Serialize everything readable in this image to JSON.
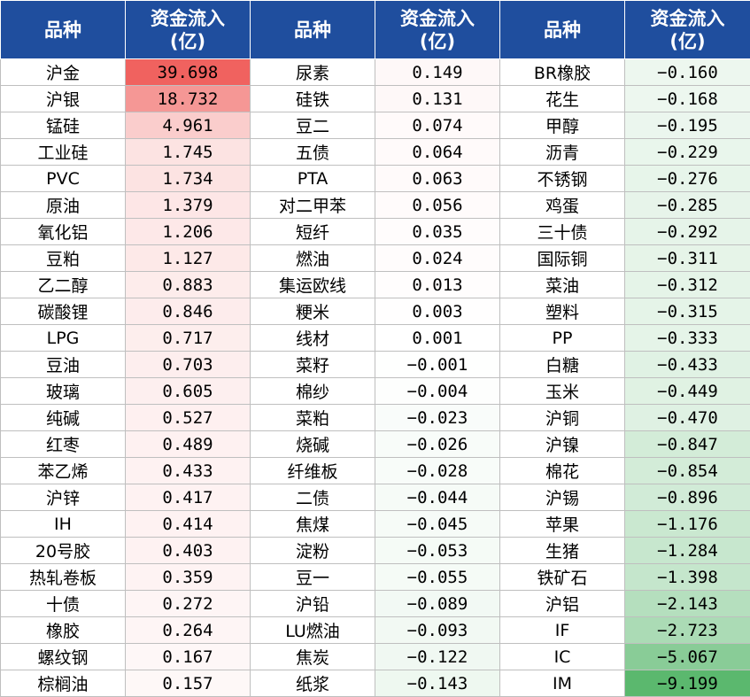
{
  "headers": {
    "variety": "品种",
    "flow_line1": "资金流入",
    "flow_line2": "(亿)"
  },
  "colors": {
    "header_bg": "#1f4e9e",
    "header_text": "#ffffff",
    "positive_max": "#f0625f",
    "negative_max": "#5bb86e",
    "neutral": "#ffffff"
  },
  "scale": {
    "positive_max": 39.698,
    "negative_max": -9.199
  },
  "columns": [
    {
      "rows": [
        {
          "name": "沪金",
          "value": "39.698"
        },
        {
          "name": "沪银",
          "value": "18.732"
        },
        {
          "name": "锰硅",
          "value": "4.961"
        },
        {
          "name": "工业硅",
          "value": "1.745"
        },
        {
          "name": "PVC",
          "value": "1.734"
        },
        {
          "name": "原油",
          "value": "1.379"
        },
        {
          "name": "氧化铝",
          "value": "1.206"
        },
        {
          "name": "豆粕",
          "value": "1.127"
        },
        {
          "name": "乙二醇",
          "value": "0.883"
        },
        {
          "name": "碳酸锂",
          "value": "0.846"
        },
        {
          "name": "LPG",
          "value": "0.717"
        },
        {
          "name": "豆油",
          "value": "0.703"
        },
        {
          "name": "玻璃",
          "value": "0.605"
        },
        {
          "name": "纯碱",
          "value": "0.527"
        },
        {
          "name": "红枣",
          "value": "0.489"
        },
        {
          "name": "苯乙烯",
          "value": "0.433"
        },
        {
          "name": "沪锌",
          "value": "0.417"
        },
        {
          "name": "IH",
          "value": "0.414"
        },
        {
          "name": "20号胶",
          "value": "0.403"
        },
        {
          "name": "热轧卷板",
          "value": "0.359"
        },
        {
          "name": "十债",
          "value": "0.272"
        },
        {
          "name": "橡胶",
          "value": "0.264"
        },
        {
          "name": "螺纹钢",
          "value": "0.167"
        },
        {
          "name": "棕榈油",
          "value": "0.157"
        }
      ]
    },
    {
      "rows": [
        {
          "name": "尿素",
          "value": "0.149"
        },
        {
          "name": "硅铁",
          "value": "0.131"
        },
        {
          "name": "豆二",
          "value": "0.074"
        },
        {
          "name": "五债",
          "value": "0.064"
        },
        {
          "name": "PTA",
          "value": "0.063"
        },
        {
          "name": "对二甲苯",
          "value": "0.056"
        },
        {
          "name": "短纤",
          "value": "0.035"
        },
        {
          "name": "燃油",
          "value": "0.024"
        },
        {
          "name": "集运欧线",
          "value": "0.013"
        },
        {
          "name": "粳米",
          "value": "0.003"
        },
        {
          "name": "线材",
          "value": "0.001"
        },
        {
          "name": "菜籽",
          "value": "−0.001"
        },
        {
          "name": "棉纱",
          "value": "−0.004"
        },
        {
          "name": "菜粕",
          "value": "−0.023"
        },
        {
          "name": "烧碱",
          "value": "−0.026"
        },
        {
          "name": "纤维板",
          "value": "−0.028"
        },
        {
          "name": "二债",
          "value": "−0.044"
        },
        {
          "name": "焦煤",
          "value": "−0.045"
        },
        {
          "name": "淀粉",
          "value": "−0.053"
        },
        {
          "name": "豆一",
          "value": "−0.055"
        },
        {
          "name": "沪铅",
          "value": "−0.089"
        },
        {
          "name": "LU燃油",
          "value": "−0.093"
        },
        {
          "name": "焦炭",
          "value": "−0.122"
        },
        {
          "name": "纸浆",
          "value": "−0.143"
        }
      ]
    },
    {
      "rows": [
        {
          "name": "BR橡胶",
          "value": "−0.160"
        },
        {
          "name": "花生",
          "value": "−0.168"
        },
        {
          "name": "甲醇",
          "value": "−0.195"
        },
        {
          "name": "沥青",
          "value": "−0.229"
        },
        {
          "name": "不锈钢",
          "value": "−0.276"
        },
        {
          "name": "鸡蛋",
          "value": "−0.285"
        },
        {
          "name": "三十债",
          "value": "−0.292"
        },
        {
          "name": "国际铜",
          "value": "−0.311"
        },
        {
          "name": "菜油",
          "value": "−0.312"
        },
        {
          "name": "塑料",
          "value": "−0.315"
        },
        {
          "name": "PP",
          "value": "−0.333"
        },
        {
          "name": "白糖",
          "value": "−0.433"
        },
        {
          "name": "玉米",
          "value": "−0.449"
        },
        {
          "name": "沪铜",
          "value": "−0.470"
        },
        {
          "name": "沪镍",
          "value": "−0.847"
        },
        {
          "name": "棉花",
          "value": "−0.854"
        },
        {
          "name": "沪锡",
          "value": "−0.896"
        },
        {
          "name": "苹果",
          "value": "−1.176"
        },
        {
          "name": "生猪",
          "value": "−1.284"
        },
        {
          "name": "铁矿石",
          "value": "−1.398"
        },
        {
          "name": "沪铝",
          "value": "−2.143"
        },
        {
          "name": "IF",
          "value": "−2.723"
        },
        {
          "name": "IC",
          "value": "−5.067"
        },
        {
          "name": "IM",
          "value": "−9.199"
        }
      ]
    }
  ]
}
